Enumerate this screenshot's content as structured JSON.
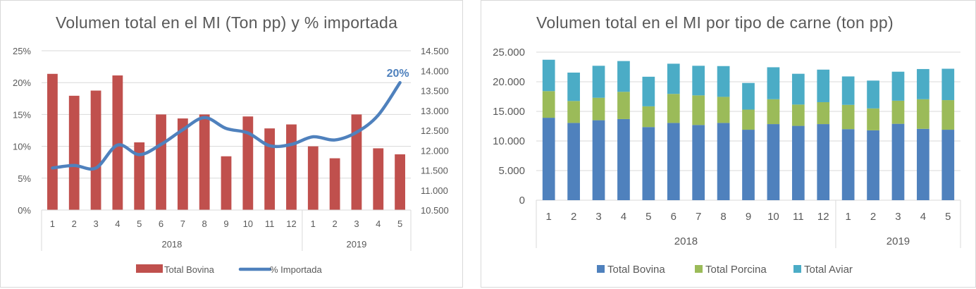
{
  "charts": {
    "left": {
      "title": "Volumen total en el MI (Ton pp) y % importada",
      "highlight_label": "20%"
    },
    "right": {
      "title": "Volumen total en el MI por tipo de carne (ton pp)"
    }
  },
  "chart_data": [
    {
      "type": "bar",
      "title": "Volumen total en el MI (Ton pp) y % importada",
      "categories": [
        "1",
        "2",
        "3",
        "4",
        "5",
        "6",
        "7",
        "8",
        "9",
        "10",
        "11",
        "12",
        "1",
        "2",
        "3",
        "4",
        "5"
      ],
      "groups": [
        {
          "label": "2018",
          "from": 0,
          "to": 11
        },
        {
          "label": "2019",
          "from": 12,
          "to": 16
        }
      ],
      "y_left": {
        "min": 0,
        "max": 25,
        "ticks": [
          "0%",
          "5%",
          "10%",
          "15%",
          "20%",
          "25%"
        ]
      },
      "y_right": {
        "min": 10500,
        "max": 14500,
        "ticks": [
          "10.500",
          "11.000",
          "11.500",
          "12.000",
          "12.500",
          "13.000",
          "13.500",
          "14.000",
          "14.500"
        ]
      },
      "series": [
        {
          "name": "Total Bovina",
          "type": "bar",
          "axis": "right",
          "color": "#c0504d",
          "values": [
            13920,
            13370,
            13500,
            13880,
            12200,
            12900,
            12800,
            12900,
            11850,
            12850,
            12550,
            12650,
            12100,
            11800,
            12900,
            12050,
            11900
          ]
        },
        {
          "name": "% Importada",
          "type": "line",
          "axis": "left",
          "color": "#4f81bd",
          "values": [
            6.6,
            7.0,
            6.6,
            10.2,
            8.7,
            10.3,
            12.6,
            14.5,
            12.8,
            12.1,
            10.1,
            10.3,
            11.5,
            11.0,
            12.2,
            14.9,
            20.0
          ]
        }
      ],
      "legend": "bottom",
      "grid": true
    },
    {
      "type": "bar",
      "stacked": true,
      "title": "Volumen total en el MI por tipo de carne (ton pp)",
      "categories": [
        "1",
        "2",
        "3",
        "4",
        "5",
        "6",
        "7",
        "8",
        "9",
        "10",
        "11",
        "12",
        "1",
        "2",
        "3",
        "4",
        "5"
      ],
      "groups": [
        {
          "label": "2018",
          "from": 0,
          "to": 11
        },
        {
          "label": "2019",
          "from": 12,
          "to": 16
        }
      ],
      "y": {
        "min": 0,
        "max": 25000,
        "ticks": [
          "0",
          "5.000",
          "10.000",
          "15.000",
          "20.000",
          "25.000"
        ]
      },
      "series": [
        {
          "name": "Total Bovina",
          "color": "#4f81bd",
          "values": [
            13920,
            13050,
            13500,
            13700,
            12350,
            13050,
            12700,
            13050,
            11900,
            12850,
            12550,
            12850,
            12000,
            11800,
            12900,
            12050,
            11900
          ]
        },
        {
          "name": "Total Porcina",
          "color": "#9bbb59",
          "values": [
            4500,
            3700,
            3800,
            4600,
            3500,
            4900,
            5000,
            4400,
            3400,
            4200,
            3600,
            3700,
            4100,
            3700,
            3900,
            5000,
            5000
          ]
        },
        {
          "name": "Total Aviar",
          "color": "#4bacc6",
          "values": [
            5300,
            4800,
            5400,
            5200,
            5000,
            5100,
            5000,
            5200,
            4500,
            5400,
            5200,
            5500,
            4800,
            4700,
            4900,
            5100,
            5300
          ]
        }
      ],
      "legend": "bottom",
      "grid": true
    }
  ]
}
